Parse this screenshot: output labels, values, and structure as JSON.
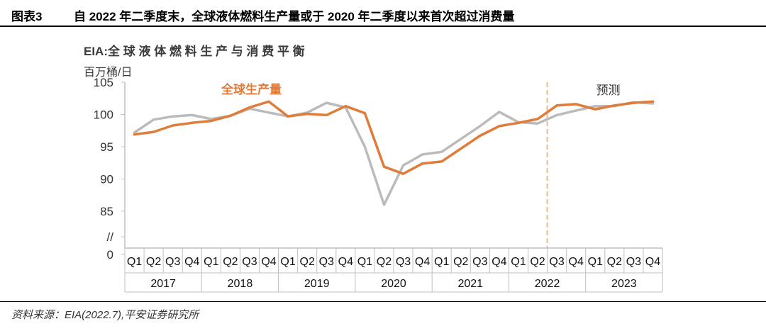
{
  "figure": {
    "number": "图表3",
    "title": "自 2022 年二季度末，全球液体燃料生产量或于 2020 年二季度以来首次超过消费量"
  },
  "source": "资料来源：EIA(2022.7),平安证券研究所",
  "chart_data": {
    "type": "line",
    "title": "EIA:全 球 液 体 燃 料 生 产 与 消 费 平 衡",
    "ylabel": "百万桶/日",
    "xlabel": "",
    "ylim": [
      85,
      105
    ],
    "yticks": [
      "105",
      "100",
      "95",
      "90",
      "85",
      "//",
      "0"
    ],
    "grid": false,
    "categories": [
      "Q1",
      "Q2",
      "Q3",
      "Q4",
      "Q1",
      "Q2",
      "Q3",
      "Q4",
      "Q1",
      "Q2",
      "Q3",
      "Q4",
      "Q1",
      "Q2",
      "Q3",
      "Q4",
      "Q1",
      "Q2",
      "Q3",
      "Q4",
      "Q1",
      "Q2",
      "Q3",
      "Q4",
      "Q1",
      "Q2",
      "Q3",
      "Q4"
    ],
    "years": [
      "2017",
      "2018",
      "2019",
      "2020",
      "2021",
      "2022",
      "2023"
    ],
    "series": [
      {
        "name": "全球生产量",
        "color": "#E07B39",
        "values": [
          96.9,
          97.3,
          98.3,
          98.7,
          99.0,
          99.8,
          101.1,
          102.0,
          99.7,
          100.1,
          99.9,
          101.3,
          100.2,
          91.9,
          90.8,
          92.4,
          92.7,
          94.7,
          96.7,
          98.2,
          98.7,
          99.3,
          101.4,
          101.6,
          100.8,
          101.4,
          101.8,
          102.0
        ]
      },
      {
        "name": "",
        "color": "#BBBBBB",
        "values": [
          97.2,
          99.2,
          99.7,
          99.9,
          99.3,
          99.8,
          100.9,
          100.3,
          99.7,
          100.3,
          101.8,
          101.1,
          95.0,
          86.0,
          92.1,
          93.8,
          94.2,
          96.2,
          98.2,
          100.4,
          98.8,
          98.6,
          99.9,
          100.6,
          101.3,
          101.3,
          101.9,
          101.7
        ]
      }
    ],
    "forecast_label": "预测",
    "forecast_start_index": 22,
    "colors": {
      "production": "#E07B39",
      "consumption": "#BBBBBB",
      "forecast_line": "#F2B98C",
      "axis": "#BFBFBF"
    }
  }
}
